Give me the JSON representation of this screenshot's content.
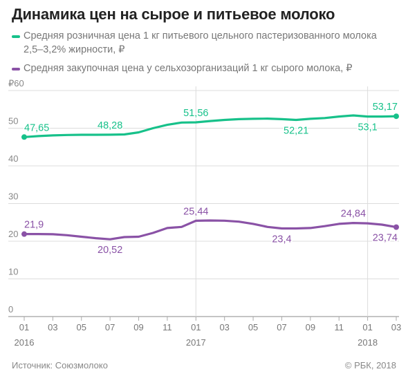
{
  "title": "Динамика цен на сырое и питьевое молоко",
  "legend": [
    {
      "label": "Средняя розничная цена 1 кг питьевого цельного пастеризованного молока 2,5–3,2% жирности, ₽",
      "color": "#17c18a"
    },
    {
      "label": "Средняя закупочная цена у сельхозорганизаций 1 кг сырого молока, ₽",
      "color": "#8a52a6"
    }
  ],
  "footer": {
    "source": "Источник: Союзмолоко",
    "copyright": "© РБК, 2018"
  },
  "chart_data": {
    "type": "line",
    "title": "Динамика цен на сырое и питьевое молоко",
    "y_unit_label": "₽",
    "ylim": [
      0,
      60
    ],
    "y_ticks": [
      "0",
      "10",
      "20",
      "30",
      "40",
      "50",
      "60"
    ],
    "x_months": [
      "2016-01",
      "2016-02",
      "2016-03",
      "2016-04",
      "2016-05",
      "2016-06",
      "2016-07",
      "2016-08",
      "2016-09",
      "2016-10",
      "2016-11",
      "2016-12",
      "2017-01",
      "2017-02",
      "2017-03",
      "2017-04",
      "2017-05",
      "2017-06",
      "2017-07",
      "2017-08",
      "2017-09",
      "2017-10",
      "2017-11",
      "2017-12",
      "2018-01",
      "2018-02",
      "2018-03"
    ],
    "x_tick_labels": [
      {
        "month": "2016-01",
        "label": "01"
      },
      {
        "month": "2016-03",
        "label": "03"
      },
      {
        "month": "2016-05",
        "label": "05"
      },
      {
        "month": "2016-07",
        "label": "07"
      },
      {
        "month": "2016-09",
        "label": "09"
      },
      {
        "month": "2016-11",
        "label": "11"
      },
      {
        "month": "2017-01",
        "label": "01"
      },
      {
        "month": "2017-03",
        "label": "03"
      },
      {
        "month": "2017-05",
        "label": "05"
      },
      {
        "month": "2017-07",
        "label": "07"
      },
      {
        "month": "2017-09",
        "label": "09"
      },
      {
        "month": "2017-11",
        "label": "11"
      },
      {
        "month": "2018-01",
        "label": "01"
      },
      {
        "month": "2018-03",
        "label": "03"
      }
    ],
    "year_labels": [
      {
        "month": "2016-01",
        "label": "2016"
      },
      {
        "month": "2017-01",
        "label": "2017"
      },
      {
        "month": "2018-01",
        "label": "2018"
      }
    ],
    "year_gridlines": [
      "2017-01",
      "2018-01"
    ],
    "grid": true,
    "series": [
      {
        "color": "#17c18a",
        "values": [
          47.65,
          47.9,
          48.1,
          48.2,
          48.25,
          48.25,
          48.28,
          48.35,
          48.9,
          50.0,
          50.9,
          51.5,
          51.56,
          51.9,
          52.2,
          52.4,
          52.5,
          52.55,
          52.4,
          52.21,
          52.5,
          52.7,
          53.1,
          53.4,
          53.1,
          53.1,
          53.17
        ],
        "point_labels": [
          {
            "index": 0,
            "text": "47,65",
            "pos": "above"
          },
          {
            "index": 6,
            "text": "48,28",
            "pos": "above"
          },
          {
            "index": 12,
            "text": "51,56",
            "pos": "above"
          },
          {
            "index": 19,
            "text": "52,21",
            "pos": "below"
          },
          {
            "index": 24,
            "text": "53,1",
            "pos": "below"
          },
          {
            "index": 26,
            "text": "53,17",
            "pos": "above"
          }
        ]
      },
      {
        "color": "#8a52a6",
        "values": [
          21.9,
          21.9,
          21.85,
          21.6,
          21.2,
          20.8,
          20.52,
          21.1,
          21.2,
          22.2,
          23.5,
          23.8,
          25.44,
          25.5,
          25.45,
          25.2,
          24.6,
          23.8,
          23.4,
          23.4,
          23.5,
          24.0,
          24.6,
          24.84,
          24.75,
          24.4,
          23.74
        ],
        "point_labels": [
          {
            "index": 0,
            "text": "21,9",
            "pos": "above"
          },
          {
            "index": 6,
            "text": "20,52",
            "pos": "below"
          },
          {
            "index": 12,
            "text": "25,44",
            "pos": "above"
          },
          {
            "index": 18,
            "text": "23,4",
            "pos": "below"
          },
          {
            "index": 23,
            "text": "24,84",
            "pos": "above"
          },
          {
            "index": 26,
            "text": "23,74",
            "pos": "below"
          }
        ]
      }
    ]
  }
}
